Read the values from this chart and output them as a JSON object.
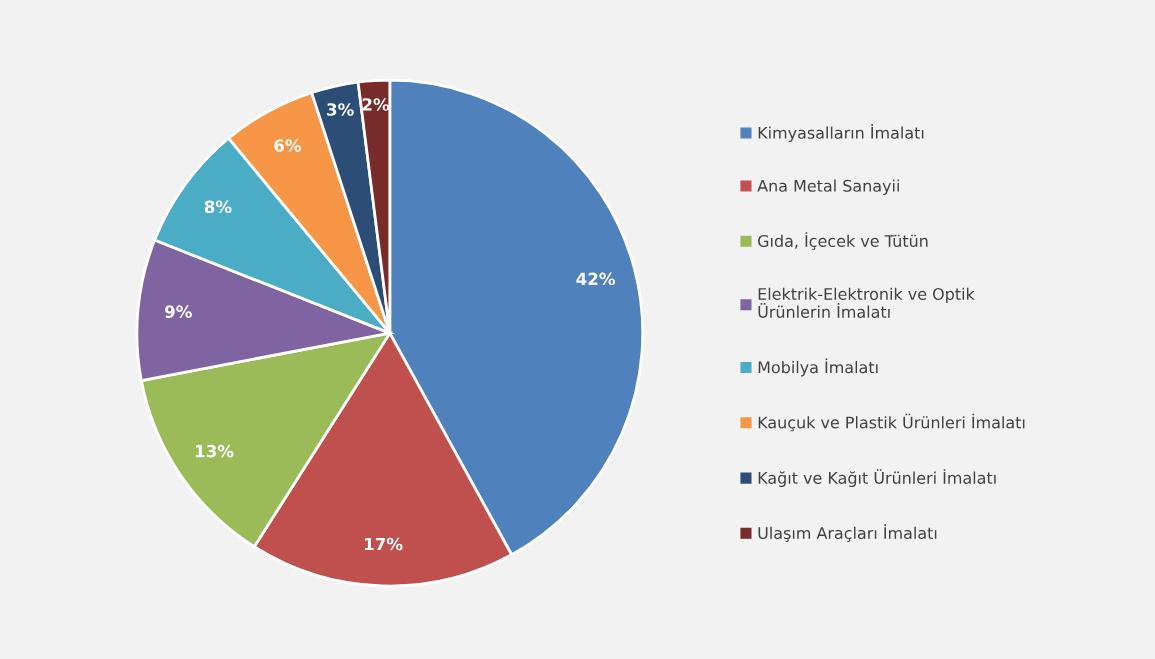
{
  "chart_data": {
    "type": "pie",
    "categories": [
      "Kimyasalların İmalatı",
      "Ana Metal Sanayii",
      "Gıda, İçecek ve Tütün",
      "Elektrik-Elektronik ve Optik Ürünlerin İmalatı",
      "Mobilya İmalatı",
      "Kauçuk ve Plastik Ürünleri İmalatı",
      "Kağıt ve Kağıt Ürünleri İmalatı",
      "Ulaşım Araçları İmalatı"
    ],
    "values": [
      42,
      17,
      13,
      9,
      8,
      6,
      3,
      2
    ],
    "colors": [
      "#4f81bd",
      "#c0504d",
      "#9bbb59",
      "#8064a2",
      "#4bacc6",
      "#f79646",
      "#2c4d75",
      "#772c2a"
    ],
    "value_labels": [
      "42%",
      "17%",
      "13%",
      "9%",
      "8%",
      "6%",
      "3%",
      "2%"
    ],
    "legend": "right"
  }
}
